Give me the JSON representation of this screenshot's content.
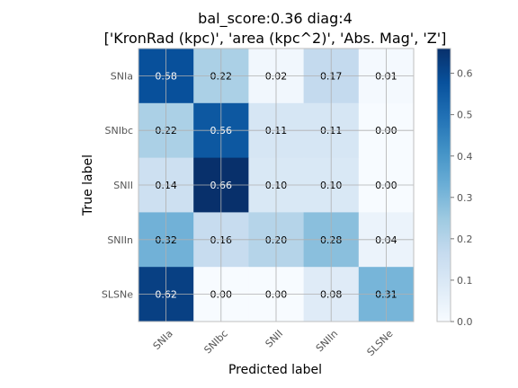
{
  "chart_data": {
    "type": "heatmap",
    "title_lines": [
      "bal_score:0.36 diag:4",
      "['KronRad (kpc)', 'area (kpc^2)', 'Abs. Mag', 'Z']"
    ],
    "xlabel": "Predicted label",
    "ylabel": "True label",
    "x_categories": [
      "SNIa",
      "SNIbc",
      "SNII",
      "SNIIn",
      "SLSNe"
    ],
    "y_categories": [
      "SNIa",
      "SNIbc",
      "SNII",
      "SNIIn",
      "SLSNe"
    ],
    "values": [
      [
        0.58,
        0.22,
        0.02,
        0.17,
        0.01
      ],
      [
        0.22,
        0.56,
        0.11,
        0.11,
        0.0
      ],
      [
        0.14,
        0.66,
        0.1,
        0.1,
        0.0
      ],
      [
        0.32,
        0.16,
        0.2,
        0.28,
        0.04
      ],
      [
        0.62,
        0.0,
        0.0,
        0.08,
        0.31
      ]
    ],
    "cell_labels": [
      [
        "0.58",
        "0.22",
        "0.02",
        "0.17",
        "0.01"
      ],
      [
        "0.22",
        "0.56",
        "0.11",
        "0.11",
        "0.00"
      ],
      [
        "0.14",
        "0.66",
        "0.10",
        "0.10",
        "0.00"
      ],
      [
        "0.32",
        "0.16",
        "0.20",
        "0.28",
        "0.04"
      ],
      [
        "0.62",
        "0.00",
        "0.00",
        "0.08",
        "0.31"
      ]
    ],
    "colormap": "Blues",
    "vmin": 0.0,
    "vmax": 0.66,
    "colorbar_ticks": [
      0.0,
      0.1,
      0.2,
      0.3,
      0.4,
      0.5,
      0.6
    ],
    "colorbar_tick_labels": [
      "0.0",
      "0.1",
      "0.2",
      "0.3",
      "0.4",
      "0.5",
      "0.6"
    ],
    "grid": true,
    "grid_color": "#b0b0b0"
  }
}
